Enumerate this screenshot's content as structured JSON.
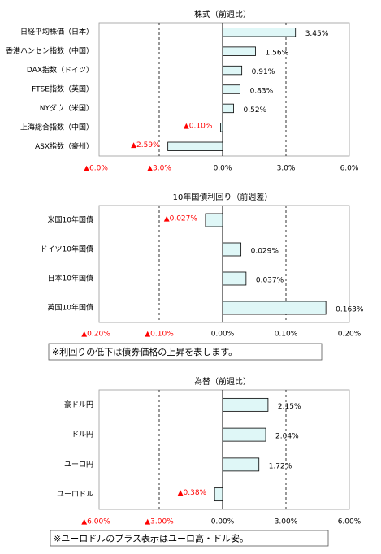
{
  "chart_data": [
    {
      "type": "hbar",
      "title": "株式（前週比）",
      "categories": [
        "日経平均株価（日本）",
        "香港ハンセン指数（中国）",
        "DAX指数（ドイツ）",
        "FTSE指数（英国）",
        "NYダウ（米国）",
        "上海総合指数（中国）",
        "ASX指数（豪州）"
      ],
      "values": [
        3.45,
        1.56,
        0.91,
        0.83,
        0.52,
        -0.1,
        -2.59
      ],
      "value_labels": [
        "3.45%",
        "1.56%",
        "0.91%",
        "0.83%",
        "0.52%",
        "▲0.10%",
        "▲2.59%"
      ],
      "xlim": [
        -6,
        6
      ],
      "xticks": [
        {
          "value": -6,
          "label": "▲6.0%"
        },
        {
          "value": -3,
          "label": "▲3.0%"
        },
        {
          "value": 0,
          "label": "0.0%"
        },
        {
          "value": 3,
          "label": "3.0%"
        },
        {
          "value": 6,
          "label": "6.0%"
        }
      ],
      "grid": true,
      "color": "#dff7f7",
      "negative_color": "#ff0000"
    },
    {
      "type": "hbar",
      "title": "10年国債利回り（前週差）",
      "categories": [
        "米国10年国債",
        "ドイツ10年国債",
        "日本10年国債",
        "英国10年国債"
      ],
      "values": [
        -0.027,
        0.029,
        0.037,
        0.163
      ],
      "value_labels": [
        "▲0.027%",
        "0.029%",
        "0.037%",
        "0.163%"
      ],
      "xlim": [
        -0.2,
        0.2
      ],
      "xticks": [
        {
          "value": -0.2,
          "label": "▲0.20%"
        },
        {
          "value": -0.1,
          "label": "▲0.10%"
        },
        {
          "value": 0,
          "label": "0.00%"
        },
        {
          "value": 0.1,
          "label": "0.10%"
        },
        {
          "value": 0.2,
          "label": "0.20%"
        }
      ],
      "grid": true,
      "color": "#dff7f7",
      "negative_color": "#ff0000",
      "note": "※利回りの低下は債券価格の上昇を表します。"
    },
    {
      "type": "hbar",
      "title": "為替（前週比）",
      "categories": [
        "豪ドル円",
        "ドル円",
        "ユーロ円",
        "ユーロドル"
      ],
      "values": [
        2.15,
        2.04,
        1.72,
        -0.38
      ],
      "value_labels": [
        "2.15%",
        "2.04%",
        "1.72%",
        "▲0.38%"
      ],
      "xlim": [
        -6,
        6
      ],
      "xticks": [
        {
          "value": -6,
          "label": "▲6.00%"
        },
        {
          "value": -3,
          "label": "▲3.00%"
        },
        {
          "value": 0,
          "label": "0.00%"
        },
        {
          "value": 3,
          "label": "3.00%"
        },
        {
          "value": 6,
          "label": "6.00%"
        }
      ],
      "grid": true,
      "color": "#dff7f7",
      "negative_color": "#ff0000",
      "note": "※ユーロドルのプラス表示はユーロ高・ドル安。"
    }
  ]
}
